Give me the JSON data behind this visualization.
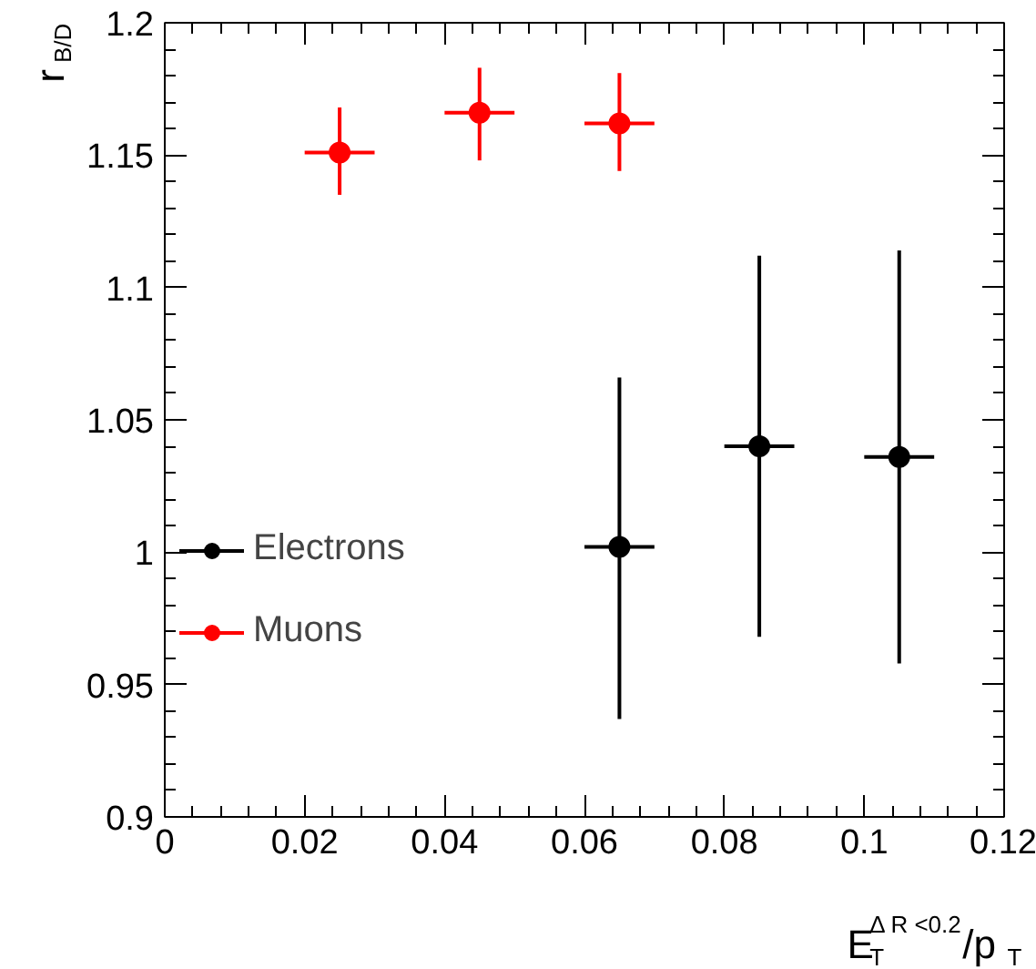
{
  "chart_data": {
    "type": "scatter",
    "xlabel": "E$^{Δ R <0.2}$$_{T}$/p$_{T}$",
    "ylabel": "r$_{B/D}$",
    "xlim": [
      0,
      0.12
    ],
    "xticks": [
      0,
      0.02,
      0.04,
      0.06,
      0.08,
      0.1,
      0.12
    ],
    "ylim": [
      0.9,
      1.2
    ],
    "yticks": [
      0.9,
      0.95,
      1,
      1.05,
      1.1,
      1.15,
      1.2
    ],
    "marker": "circle",
    "legend": "left",
    "grid": false,
    "series": [
      {
        "name": "Electrons",
        "color": "#000000",
        "x": [
          0.065,
          0.085,
          0.105
        ],
        "values": [
          1.002,
          1.04,
          1.036
        ],
        "errors": [
          [
            0.937,
            1.066
          ],
          [
            0.968,
            1.112
          ],
          [
            0.958,
            1.114
          ]
        ],
        "xerrors": [
          0.005,
          0.005,
          0.005
        ]
      },
      {
        "name": "Muons",
        "color": "#ff0000",
        "x": [
          0.025,
          0.045,
          0.065
        ],
        "values": [
          1.151,
          1.166,
          1.162
        ],
        "errors": [
          [
            1.135,
            1.168
          ],
          [
            1.148,
            1.183
          ],
          [
            1.144,
            1.181
          ]
        ],
        "xerrors": [
          0.005,
          0.005,
          0.005
        ]
      }
    ]
  }
}
